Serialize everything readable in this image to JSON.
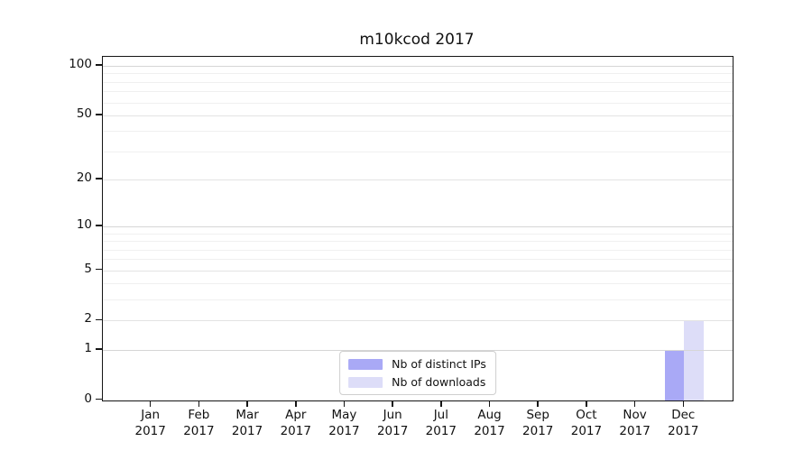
{
  "title": "m10kcod 2017",
  "chart_data": {
    "type": "bar",
    "title": "m10kcod 2017",
    "categories": [
      {
        "month": "Jan",
        "year": "2017"
      },
      {
        "month": "Feb",
        "year": "2017"
      },
      {
        "month": "Mar",
        "year": "2017"
      },
      {
        "month": "Apr",
        "year": "2017"
      },
      {
        "month": "May",
        "year": "2017"
      },
      {
        "month": "Jun",
        "year": "2017"
      },
      {
        "month": "Jul",
        "year": "2017"
      },
      {
        "month": "Aug",
        "year": "2017"
      },
      {
        "month": "Sep",
        "year": "2017"
      },
      {
        "month": "Oct",
        "year": "2017"
      },
      {
        "month": "Nov",
        "year": "2017"
      },
      {
        "month": "Dec",
        "year": "2017"
      }
    ],
    "series": [
      {
        "name": "Nb of distinct IPs",
        "color": "#a9a9f6",
        "values": [
          0,
          0,
          0,
          0,
          0,
          0,
          0,
          0,
          0,
          0,
          0,
          1
        ]
      },
      {
        "name": "Nb of downloads",
        "color": "#ddddf8",
        "values": [
          0,
          0,
          0,
          0,
          0,
          0,
          0,
          0,
          0,
          0,
          0,
          2
        ]
      }
    ],
    "yscale": "log10(1+x)",
    "ylim": [
      0,
      113
    ],
    "yticks": [
      0,
      1,
      2,
      5,
      10,
      20,
      50,
      100
    ],
    "decade_gridlines": [
      1,
      10,
      100
    ],
    "minor_gridlines": [
      3,
      4,
      6,
      7,
      8,
      9,
      30,
      40,
      60,
      70,
      80,
      90
    ],
    "grid": true,
    "legend_position": "lower center"
  }
}
